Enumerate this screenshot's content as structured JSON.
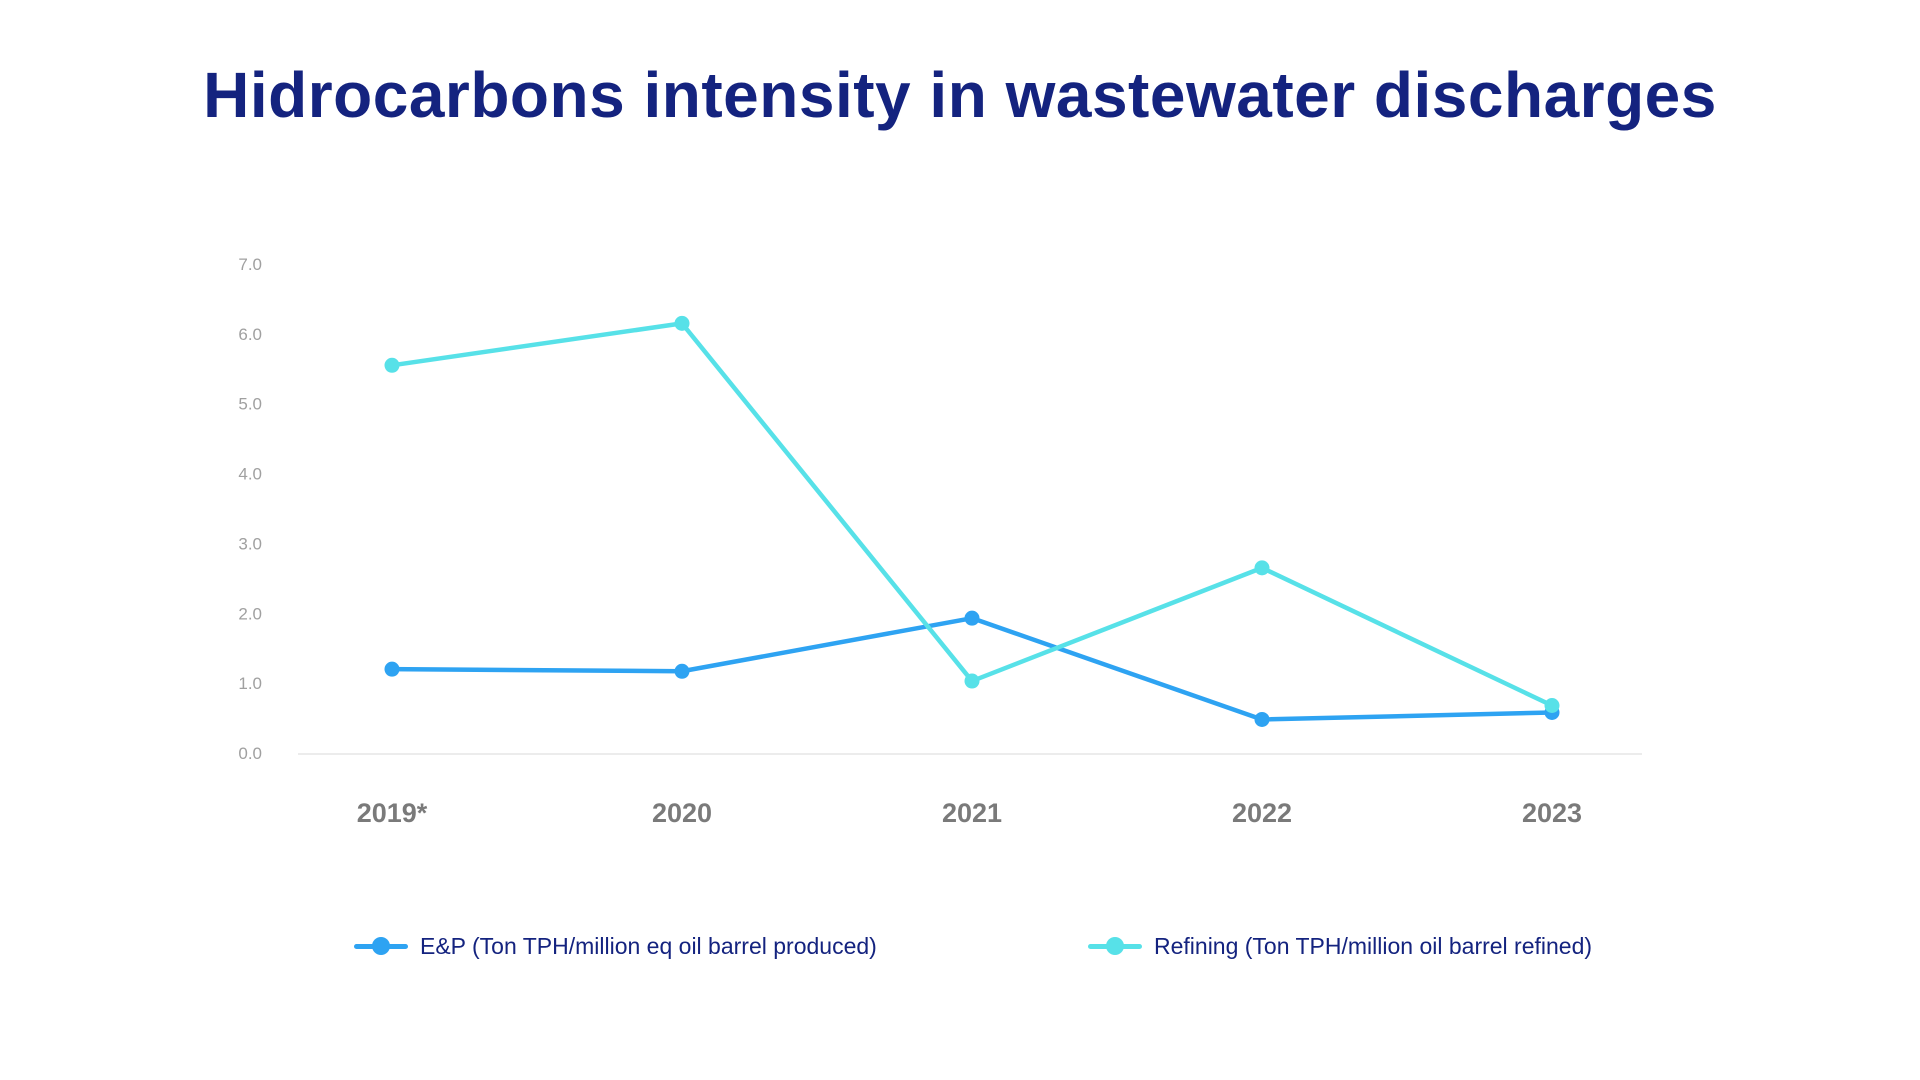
{
  "chart_data": {
    "type": "line",
    "title": "Hidrocarbons intensity in wastewater discharges",
    "categories": [
      "2019*",
      "2020",
      "2021",
      "2022",
      "2023"
    ],
    "ylim": [
      0,
      7
    ],
    "yticks": [
      "0.0",
      "1.0",
      "2.0",
      "3.0",
      "4.0",
      "5.0",
      "6.0",
      "7.0"
    ],
    "xlabel": "",
    "ylabel": "",
    "grid": false,
    "legend_position": "bottom",
    "series": [
      {
        "name": "E&P (Ton TPH/million eq oil barrel produced)",
        "color": "#2ea3f2",
        "values": [
          1.2,
          1.17,
          1.93,
          0.48,
          0.58
        ]
      },
      {
        "name": "Refining (Ton TPH/million oil barrel refined)",
        "color": "#57e1e8",
        "values": [
          5.55,
          6.15,
          1.03,
          2.65,
          0.68
        ]
      }
    ]
  },
  "colors": {
    "title": "#14237f",
    "axis_line": "#e6e6e6"
  }
}
